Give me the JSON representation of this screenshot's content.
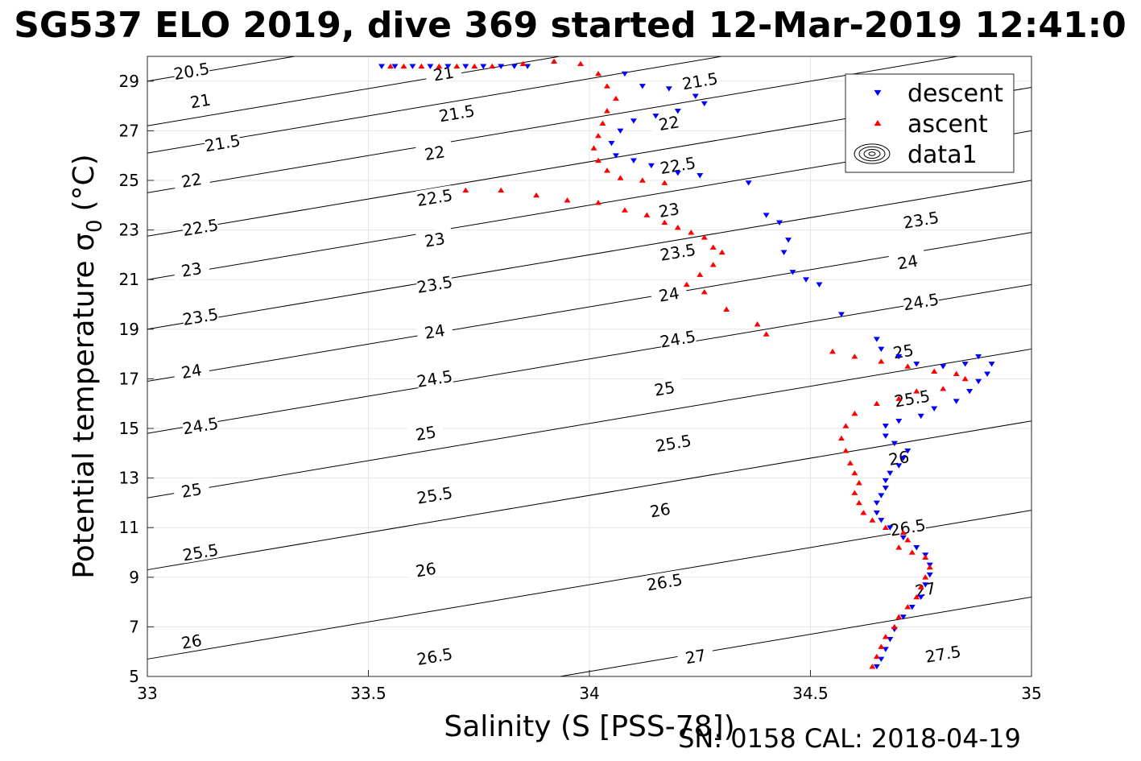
{
  "chart_data": {
    "type": "scatter",
    "title": "SG537 ELO 2019, dive 369 started 12-Mar-2019 12:41:0",
    "xlabel": "Salinity (S [PSS-78])",
    "ylabel_main": "Potential temperature σ",
    "ylabel_sub": "0",
    "ylabel_unit": "(°C)",
    "footer": "SN: 0158  CAL: 2018-04-19",
    "xlim": [
      33,
      35
    ],
    "ylim": [
      5,
      30
    ],
    "grid": true,
    "legend_position": "top-right",
    "xticks": [
      "33",
      "33.5",
      "34",
      "34.5",
      "35"
    ],
    "yticks": [
      "5",
      "7",
      "9",
      "11",
      "13",
      "15",
      "17",
      "19",
      "21",
      "23",
      "25",
      "27",
      "29"
    ],
    "series": [
      {
        "name": "descent",
        "marker": "triangle-down",
        "color": "#0000ff",
        "points": [
          [
            33.53,
            29.6
          ],
          [
            33.56,
            29.6
          ],
          [
            33.6,
            29.6
          ],
          [
            33.64,
            29.6
          ],
          [
            33.68,
            29.6
          ],
          [
            33.72,
            29.6
          ],
          [
            33.76,
            29.6
          ],
          [
            33.8,
            29.6
          ],
          [
            33.83,
            29.6
          ],
          [
            33.86,
            29.6
          ],
          [
            34.08,
            29.3
          ],
          [
            34.12,
            28.8
          ],
          [
            34.18,
            28.7
          ],
          [
            34.24,
            28.4
          ],
          [
            34.26,
            28.1
          ],
          [
            34.2,
            27.8
          ],
          [
            34.15,
            27.6
          ],
          [
            34.1,
            27.4
          ],
          [
            34.07,
            27.0
          ],
          [
            34.05,
            26.5
          ],
          [
            34.06,
            26.0
          ],
          [
            34.1,
            25.8
          ],
          [
            34.14,
            25.6
          ],
          [
            34.2,
            25.3
          ],
          [
            34.25,
            25.2
          ],
          [
            34.36,
            24.9
          ],
          [
            34.4,
            23.6
          ],
          [
            34.43,
            23.3
          ],
          [
            34.45,
            22.6
          ],
          [
            34.44,
            22.1
          ],
          [
            34.46,
            21.3
          ],
          [
            34.49,
            21.0
          ],
          [
            34.52,
            20.8
          ],
          [
            34.57,
            19.6
          ],
          [
            34.65,
            18.6
          ],
          [
            34.66,
            18.2
          ],
          [
            34.7,
            17.9
          ],
          [
            34.74,
            17.6
          ],
          [
            34.8,
            17.5
          ],
          [
            34.85,
            17.6
          ],
          [
            34.88,
            17.9
          ],
          [
            34.91,
            17.6
          ],
          [
            34.9,
            17.2
          ],
          [
            34.88,
            16.9
          ],
          [
            34.86,
            16.5
          ],
          [
            34.83,
            16.1
          ],
          [
            34.78,
            15.8
          ],
          [
            34.75,
            15.5
          ],
          [
            34.7,
            15.3
          ],
          [
            34.67,
            15.1
          ],
          [
            34.67,
            14.7
          ],
          [
            34.69,
            14.4
          ],
          [
            34.72,
            14.1
          ],
          [
            34.71,
            13.8
          ],
          [
            34.7,
            13.5
          ],
          [
            34.68,
            13.2
          ],
          [
            34.67,
            12.9
          ],
          [
            34.67,
            12.6
          ],
          [
            34.66,
            12.3
          ],
          [
            34.65,
            12.0
          ],
          [
            34.65,
            11.6
          ],
          [
            34.66,
            11.3
          ],
          [
            34.68,
            11.0
          ],
          [
            34.71,
            10.6
          ],
          [
            34.74,
            10.2
          ],
          [
            34.76,
            9.9
          ],
          [
            34.77,
            9.5
          ],
          [
            34.77,
            9.1
          ],
          [
            34.76,
            8.7
          ],
          [
            34.75,
            8.2
          ],
          [
            34.73,
            7.8
          ],
          [
            34.71,
            7.4
          ],
          [
            34.69,
            6.9
          ],
          [
            34.68,
            6.5
          ],
          [
            34.67,
            6.1
          ],
          [
            34.66,
            5.7
          ],
          [
            34.65,
            5.4
          ]
        ]
      },
      {
        "name": "ascent",
        "marker": "triangle-up",
        "color": "#ff0000",
        "points": [
          [
            33.55,
            29.6
          ],
          [
            33.58,
            29.6
          ],
          [
            33.62,
            29.6
          ],
          [
            33.66,
            29.6
          ],
          [
            33.7,
            29.6
          ],
          [
            33.74,
            29.6
          ],
          [
            33.78,
            29.6
          ],
          [
            33.85,
            29.7
          ],
          [
            33.92,
            29.8
          ],
          [
            33.98,
            29.7
          ],
          [
            34.02,
            29.3
          ],
          [
            34.04,
            28.8
          ],
          [
            34.06,
            28.3
          ],
          [
            34.04,
            27.8
          ],
          [
            34.03,
            27.3
          ],
          [
            34.02,
            26.8
          ],
          [
            34.01,
            26.3
          ],
          [
            34.02,
            25.8
          ],
          [
            34.04,
            25.4
          ],
          [
            34.07,
            25.1
          ],
          [
            34.12,
            25.0
          ],
          [
            34.17,
            24.9
          ],
          [
            33.72,
            24.6
          ],
          [
            33.8,
            24.6
          ],
          [
            33.88,
            24.4
          ],
          [
            33.95,
            24.2
          ],
          [
            34.02,
            24.1
          ],
          [
            34.08,
            23.8
          ],
          [
            34.13,
            23.6
          ],
          [
            34.17,
            23.3
          ],
          [
            34.2,
            23.1
          ],
          [
            34.23,
            22.9
          ],
          [
            34.26,
            22.7
          ],
          [
            34.28,
            22.3
          ],
          [
            34.3,
            22.1
          ],
          [
            34.28,
            21.6
          ],
          [
            34.25,
            21.2
          ],
          [
            34.22,
            20.8
          ],
          [
            34.26,
            20.5
          ],
          [
            34.31,
            19.8
          ],
          [
            34.38,
            19.2
          ],
          [
            34.4,
            18.8
          ],
          [
            34.55,
            18.1
          ],
          [
            34.6,
            17.9
          ],
          [
            34.66,
            17.7
          ],
          [
            34.72,
            17.5
          ],
          [
            34.78,
            17.3
          ],
          [
            34.83,
            17.2
          ],
          [
            34.85,
            17.0
          ],
          [
            34.8,
            16.6
          ],
          [
            34.74,
            16.5
          ],
          [
            34.7,
            16.2
          ],
          [
            34.65,
            16.0
          ],
          [
            34.6,
            15.6
          ],
          [
            34.58,
            15.1
          ],
          [
            34.57,
            14.6
          ],
          [
            34.58,
            14.1
          ],
          [
            34.59,
            13.6
          ],
          [
            34.6,
            13.2
          ],
          [
            34.61,
            12.8
          ],
          [
            34.6,
            12.4
          ],
          [
            34.61,
            12.0
          ],
          [
            34.62,
            11.6
          ],
          [
            34.64,
            11.3
          ],
          [
            34.67,
            11.0
          ],
          [
            34.71,
            10.8
          ],
          [
            34.72,
            10.5
          ],
          [
            34.7,
            10.2
          ],
          [
            34.73,
            10.0
          ],
          [
            34.76,
            9.8
          ],
          [
            34.77,
            9.4
          ],
          [
            34.76,
            9.0
          ],
          [
            34.75,
            8.6
          ],
          [
            34.74,
            8.2
          ],
          [
            34.72,
            7.8
          ],
          [
            34.7,
            7.4
          ],
          [
            34.69,
            7.0
          ],
          [
            34.67,
            6.6
          ],
          [
            34.66,
            6.2
          ],
          [
            34.65,
            5.8
          ],
          [
            34.64,
            5.4
          ]
        ]
      }
    ],
    "legend": [
      {
        "label": "descent",
        "marker": "triangle-down",
        "color": "#0000ff"
      },
      {
        "label": "ascent",
        "marker": "triangle-up",
        "color": "#ff0000"
      },
      {
        "label": "data1",
        "marker": "contour",
        "color": "#000000"
      }
    ],
    "contours": [
      {
        "label": "20.5",
        "t0": 29.0,
        "slope": 3.0,
        "label_at": [
          33.1,
          29.4
        ]
      },
      {
        "label": "21",
        "t0": 27.2,
        "slope": 3.0,
        "label_at": [
          33.12,
          28.2
        ]
      },
      {
        "label": "21",
        "t0": 27.2,
        "slope": 3.0,
        "label_at": [
          33.67,
          29.3
        ]
      },
      {
        "label": "21.5",
        "t0": 26.1,
        "slope": 3.0,
        "label_at": [
          33.17,
          26.5
        ]
      },
      {
        "label": "21.5",
        "t0": 26.1,
        "slope": 3.0,
        "label_at": [
          33.7,
          27.7
        ]
      },
      {
        "label": "21.5",
        "t0": 26.1,
        "slope": 3.0,
        "label_at": [
          34.25,
          29.0
        ]
      },
      {
        "label": "22",
        "t0": 24.5,
        "slope": 3.0,
        "label_at": [
          33.1,
          25.0
        ]
      },
      {
        "label": "22",
        "t0": 24.5,
        "slope": 3.0,
        "label_at": [
          33.65,
          26.1
        ]
      },
      {
        "label": "22",
        "t0": 24.5,
        "slope": 3.0,
        "label_at": [
          34.18,
          27.3
        ]
      },
      {
        "label": "22.5",
        "t0": 22.75,
        "slope": 3.0,
        "label_at": [
          33.12,
          23.1
        ]
      },
      {
        "label": "22.5",
        "t0": 22.75,
        "slope": 3.0,
        "label_at": [
          33.65,
          24.3
        ]
      },
      {
        "label": "22.5",
        "t0": 22.75,
        "slope": 3.0,
        "label_at": [
          34.2,
          25.6
        ]
      },
      {
        "label": "23",
        "t0": 21.0,
        "slope": 3.0,
        "label_at": [
          33.1,
          21.4
        ]
      },
      {
        "label": "23",
        "t0": 21.0,
        "slope": 3.0,
        "label_at": [
          33.65,
          22.6
        ]
      },
      {
        "label": "23",
        "t0": 21.0,
        "slope": 3.0,
        "label_at": [
          34.18,
          23.8
        ]
      },
      {
        "label": "23.5",
        "t0": 19.0,
        "slope": 3.0,
        "label_at": [
          33.12,
          19.5
        ]
      },
      {
        "label": "23.5",
        "t0": 19.0,
        "slope": 3.0,
        "label_at": [
          33.65,
          20.8
        ]
      },
      {
        "label": "23.5",
        "t0": 19.0,
        "slope": 3.0,
        "label_at": [
          34.2,
          22.1
        ]
      },
      {
        "label": "23.5",
        "t0": 19.0,
        "slope": 3.0,
        "label_at": [
          34.75,
          23.4
        ]
      },
      {
        "label": "24",
        "t0": 16.9,
        "slope": 3.0,
        "label_at": [
          33.1,
          17.3
        ]
      },
      {
        "label": "24",
        "t0": 16.9,
        "slope": 3.0,
        "label_at": [
          33.65,
          18.9
        ]
      },
      {
        "label": "24",
        "t0": 16.9,
        "slope": 3.0,
        "label_at": [
          34.18,
          20.4
        ]
      },
      {
        "label": "24",
        "t0": 16.9,
        "slope": 3.0,
        "label_at": [
          34.72,
          21.7
        ]
      },
      {
        "label": "24.5",
        "t0": 14.8,
        "slope": 3.0,
        "label_at": [
          33.12,
          15.1
        ]
      },
      {
        "label": "24.5",
        "t0": 14.8,
        "slope": 3.0,
        "label_at": [
          33.65,
          17.0
        ]
      },
      {
        "label": "24.5",
        "t0": 14.8,
        "slope": 3.0,
        "label_at": [
          34.2,
          18.6
        ]
      },
      {
        "label": "24.5",
        "t0": 14.8,
        "slope": 3.0,
        "label_at": [
          34.75,
          20.1
        ]
      },
      {
        "label": "25",
        "t0": 12.2,
        "slope": 3.0,
        "label_at": [
          33.1,
          12.5
        ]
      },
      {
        "label": "25",
        "t0": 12.2,
        "slope": 3.0,
        "label_at": [
          33.63,
          14.8
        ]
      },
      {
        "label": "25",
        "t0": 12.2,
        "slope": 3.0,
        "label_at": [
          34.17,
          16.6
        ]
      },
      {
        "label": "25",
        "t0": 12.2,
        "slope": 3.0,
        "label_at": [
          34.71,
          18.1
        ]
      },
      {
        "label": "25.5",
        "t0": 9.3,
        "slope": 3.0,
        "label_at": [
          33.12,
          10.0
        ]
      },
      {
        "label": "25.5",
        "t0": 9.3,
        "slope": 3.0,
        "label_at": [
          33.65,
          12.3
        ]
      },
      {
        "label": "25.5",
        "t0": 9.3,
        "slope": 3.0,
        "label_at": [
          34.19,
          14.4
        ]
      },
      {
        "label": "25.5",
        "t0": 9.3,
        "slope": 3.0,
        "label_at": [
          34.73,
          16.2
        ]
      },
      {
        "label": "26",
        "t0": 5.7,
        "slope": 3.0,
        "label_at": [
          33.1,
          6.4
        ]
      },
      {
        "label": "26",
        "t0": 5.7,
        "slope": 3.0,
        "label_at": [
          33.63,
          9.3
        ]
      },
      {
        "label": "26",
        "t0": 5.7,
        "slope": 3.0,
        "label_at": [
          34.16,
          11.7
        ]
      },
      {
        "label": "26",
        "t0": 5.7,
        "slope": 3.0,
        "label_at": [
          34.7,
          13.8
        ]
      },
      {
        "label": "26.5",
        "t0": 2.2,
        "slope": 3.0,
        "label_at": [
          33.65,
          5.8
        ]
      },
      {
        "label": "26.5",
        "t0": 2.2,
        "slope": 3.0,
        "label_at": [
          34.17,
          8.8
        ]
      },
      {
        "label": "26.5",
        "t0": 2.2,
        "slope": 3.0,
        "label_at": [
          34.72,
          11.0
        ]
      },
      {
        "label": "27",
        "t0": -3.0,
        "slope": 3.0,
        "label_at": [
          34.24,
          5.8
        ]
      },
      {
        "label": "27",
        "t0": -3.0,
        "slope": 3.0,
        "label_at": [
          34.76,
          8.5
        ]
      },
      {
        "label": "27.5",
        "t0": -8.0,
        "slope": 3.0,
        "label_at": [
          34.8,
          5.9
        ]
      }
    ]
  }
}
